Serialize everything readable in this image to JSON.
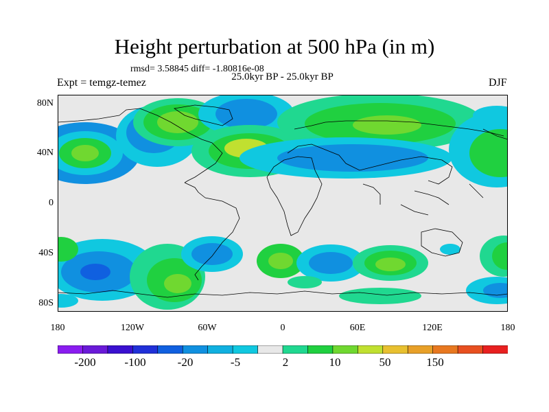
{
  "header": {
    "title": "Height perturbation at 500 hPa (in m)",
    "stats": "rmsd= 3.58845 diff= -1.80816e-08",
    "period": "25.0kyr BP - 25.0kyr BP",
    "experiment": "Expt = temgz-temez",
    "season": "DJF"
  },
  "axes": {
    "lat_labels": [
      "80N",
      "40N",
      "0",
      "40S",
      "80S"
    ],
    "lon_labels": [
      "180",
      "120W",
      "60W",
      "0",
      "60E",
      "120E",
      "180"
    ]
  },
  "colorbar": {
    "labels": [
      "-200",
      "-100",
      "-20",
      "-5",
      "2",
      "10",
      "50",
      "150"
    ],
    "colors": [
      "#8a1cf0",
      "#6a1ad8",
      "#3a10d0",
      "#2030d8",
      "#1060e0",
      "#1090e0",
      "#10b0e0",
      "#10c8e0",
      "#e8e8e8",
      "#20d890",
      "#20d040",
      "#70d830",
      "#c0e030",
      "#e8c030",
      "#e8a028",
      "#e87820",
      "#e85020",
      "#e82020"
    ]
  },
  "map": {
    "background_color": "#e8e8e8",
    "coastline_color": "#000000",
    "projection": "cylindrical-equidistant",
    "lon_range": [
      -180,
      180
    ],
    "lat_range": [
      -90,
      90
    ]
  }
}
